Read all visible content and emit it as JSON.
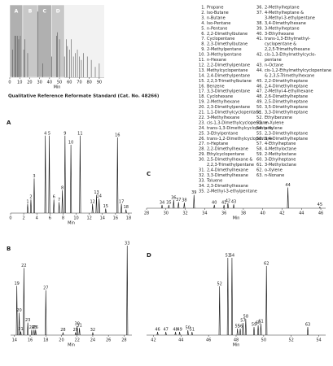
{
  "chart_data": [
    {
      "type": "overview",
      "caption": "Qualitative Reference Reformate Standard (Cat. No. 48266)",
      "xlabel": "Min",
      "xlim": [
        0,
        95
      ],
      "xticks": [
        0,
        10,
        20,
        30,
        40,
        50,
        60,
        70,
        80,
        90
      ],
      "ylim": [
        0,
        100
      ],
      "color": "#555555",
      "regions": [
        {
          "label": "A",
          "xlim": [
            0,
            13
          ]
        },
        {
          "label": "B",
          "xlim": [
            13,
            28
          ]
        },
        {
          "label": "C",
          "xlim": [
            28,
            42
          ]
        },
        {
          "label": "D",
          "xlim": [
            42,
            55
          ]
        }
      ],
      "x": [
        3,
        5,
        6,
        8,
        9,
        10.6,
        14,
        15,
        18,
        28,
        33,
        42,
        47,
        48,
        50,
        55,
        57,
        58,
        60,
        62,
        64,
        66,
        68,
        70,
        72,
        74,
        78,
        82,
        86,
        90
      ],
      "values": [
        40,
        60,
        60,
        60,
        55,
        60,
        40,
        55,
        35,
        95,
        20,
        30,
        60,
        65,
        55,
        30,
        55,
        45,
        40,
        55,
        30,
        35,
        40,
        30,
        25,
        35,
        30,
        25,
        15,
        20
      ]
    },
    {
      "type": "compound_list",
      "columns": [
        [
          {
            "no": "1.",
            "lines": [
              "Propane"
            ]
          },
          {
            "no": "2.",
            "lines": [
              "Iso-Butane"
            ]
          },
          {
            "no": "3.",
            "lines": [
              "n-Butane"
            ]
          },
          {
            "no": "4.",
            "lines": [
              "Iso-Pentane"
            ]
          },
          {
            "no": "5.",
            "lines": [
              "n-Pentane"
            ]
          },
          {
            "no": "6.",
            "lines": [
              "2,2-Dimethylbutane"
            ]
          },
          {
            "no": "7.",
            "lines": [
              "Cyclopentane"
            ]
          },
          {
            "no": "8.",
            "lines": [
              "2,3-Dimethylbutane"
            ]
          },
          {
            "no": "9.",
            "lines": [
              "2-Methylpentane"
            ]
          },
          {
            "no": "10.",
            "lines": [
              "3-Methylpentane"
            ]
          },
          {
            "no": "11.",
            "lines": [
              "n-Hexane"
            ]
          },
          {
            "no": "12.",
            "lines": [
              "2,2-Dimethylpentane"
            ]
          },
          {
            "no": "13.",
            "lines": [
              "Methylcyclopentane"
            ]
          },
          {
            "no": "14.",
            "lines": [
              "2,4-Dimethylpentane"
            ]
          },
          {
            "no": "15.",
            "lines": [
              "2,2,3-Trimethylbutane"
            ]
          },
          {
            "no": "16.",
            "lines": [
              "Benzene"
            ]
          },
          {
            "no": "17.",
            "lines": [
              "3,3-Dimethylpentane"
            ]
          },
          {
            "no": "18.",
            "lines": [
              "Cyclohexane"
            ]
          },
          {
            "no": "19.",
            "lines": [
              "2-Methylhexane"
            ]
          },
          {
            "no": "20.",
            "lines": [
              "2,3-Dimethylpentane"
            ]
          },
          {
            "no": "21.",
            "lines": [
              "1,1-Dimethylcyclopentane"
            ]
          },
          {
            "no": "22.",
            "lines": [
              "3-Methylhexane"
            ]
          },
          {
            "no": "23.",
            "lines": [
              "cis-1,3-Dimethylcyclopentane"
            ]
          },
          {
            "no": "24.",
            "lines": [
              "trans-1,3-Dimethylcyclopentane"
            ]
          },
          {
            "no": "25.",
            "lines": [
              "3-Ethylpentane"
            ]
          },
          {
            "no": "26.",
            "lines": [
              "trans-1,2-Dimethylcyclopentane"
            ]
          },
          {
            "no": "27.",
            "lines": [
              "n-Heptane"
            ]
          },
          {
            "no": "28.",
            "lines": [
              "2,2-Dimethylhexane"
            ]
          },
          {
            "no": "29.",
            "lines": [
              "Ethylcyclopentane"
            ]
          },
          {
            "no": "30.",
            "lines": [
              "2,5-Dimethylhexane &",
              "2,2,3-Trimethylpentane"
            ]
          },
          {
            "no": "31.",
            "lines": [
              "2,4-Dimethylhexane"
            ]
          },
          {
            "no": "32.",
            "lines": [
              "3,3-Dimethylhexane"
            ]
          },
          {
            "no": "33.",
            "lines": [
              "Toluene"
            ]
          },
          {
            "no": "34.",
            "lines": [
              "2,3-Dimethylhexane"
            ]
          },
          {
            "no": "35.",
            "lines": [
              "2-Methyl-3-ethylpentane"
            ]
          }
        ],
        [
          {
            "no": "36.",
            "lines": [
              "2-Methylheptane"
            ]
          },
          {
            "no": "37.",
            "lines": [
              "4-Methylheptane &",
              "3-Methyl-3-ethylpentane"
            ]
          },
          {
            "no": "38.",
            "lines": [
              "3,4-Dimethylhexane"
            ]
          },
          {
            "no": "39.",
            "lines": [
              "3-Methylheptane"
            ]
          },
          {
            "no": "40.",
            "lines": [
              "3-Ethylhexane"
            ]
          },
          {
            "no": "41.",
            "lines": [
              "trans-1,3-Ethylmethyl-",
              "cyclopentane &",
              "2,2,5-Trimethylhexane"
            ]
          },
          {
            "no": "42.",
            "lines": [
              "cis-1,3-Ethylmethylcyclo-",
              "pentane"
            ]
          },
          {
            "no": "43.",
            "lines": [
              "n-Octane"
            ]
          },
          {
            "no": "44.",
            "lines": [
              "cis-1,2-Ethylmethylcyclopentane",
              "& 2,3,5-Trimethylhexane"
            ]
          },
          {
            "no": "45.",
            "lines": [
              "2,2-Dimethylheptane"
            ]
          },
          {
            "no": "46.",
            "lines": [
              "2,4-Dimethylheptane"
            ]
          },
          {
            "no": "47.",
            "lines": [
              "2-Methyl-4-ethylhexane"
            ]
          },
          {
            "no": "48.",
            "lines": [
              "2,6-Dimethylheptane"
            ]
          },
          {
            "no": "49.",
            "lines": [
              "2,5-Dimethylheptane"
            ]
          },
          {
            "no": "50.",
            "lines": [
              "3,5-Dimethylheptane"
            ]
          },
          {
            "no": "51.",
            "lines": [
              "3,3-Dimethylheptane"
            ]
          },
          {
            "no": "52.",
            "lines": [
              "Ethylbenzene"
            ]
          },
          {
            "no": "53.",
            "lines": [
              "m-Xylene"
            ]
          },
          {
            "no": "54.",
            "lines": [
              "p-Xylene"
            ]
          },
          {
            "no": "55.",
            "lines": [
              "2,3-Dimethylheptane"
            ]
          },
          {
            "no": "56.",
            "lines": [
              "3,4-Dimethylheptane"
            ]
          },
          {
            "no": "57.",
            "lines": [
              "4-Ethylheptane"
            ]
          },
          {
            "no": "58.",
            "lines": [
              "4-Methyloctane"
            ]
          },
          {
            "no": "59.",
            "lines": [
              "2-Methyloctane"
            ]
          },
          {
            "no": "60.",
            "lines": [
              "3-Ethylheptane"
            ]
          },
          {
            "no": "61.",
            "lines": [
              "3-Methyloctane"
            ]
          },
          {
            "no": "62.",
            "lines": [
              "o-Xylene"
            ]
          },
          {
            "no": "63.",
            "lines": [
              "n-Nonane"
            ]
          }
        ]
      ]
    },
    {
      "type": "peaks",
      "title": "A",
      "xlabel": "Min",
      "xlim": [
        0,
        18.5
      ],
      "xticks": [
        0,
        2,
        4,
        6,
        8,
        10,
        12,
        14,
        16,
        18
      ],
      "ylim": [
        0,
        100
      ],
      "labels": [
        "1",
        "2",
        "3",
        "4",
        "5",
        "6",
        "7",
        "8",
        "9",
        "10",
        "11",
        "12",
        "13",
        "14",
        "15",
        "16",
        "17",
        "18"
      ],
      "x": [
        2.6,
        3.1,
        3.6,
        5.3,
        5.9,
        6.6,
        7.4,
        7.9,
        8.3,
        9.2,
        10.6,
        12.5,
        13.1,
        13.5,
        14.5,
        16.3,
        16.9,
        17.6
      ],
      "values": [
        10,
        15,
        38,
        85,
        85,
        15,
        12,
        25,
        85,
        75,
        85,
        10,
        20,
        16,
        5,
        83,
        10,
        4
      ]
    },
    {
      "type": "peaks",
      "title": "C",
      "xlabel": "Min",
      "xlim": [
        28,
        46.5
      ],
      "xticks": [
        28,
        30,
        32,
        34,
        36,
        38,
        40,
        42,
        44,
        46
      ],
      "ylim": [
        0,
        100
      ],
      "labels": [
        "34",
        "35",
        "36",
        "37",
        "38",
        "39",
        "40",
        "41",
        "42",
        "43",
        "44",
        "45"
      ],
      "x": [
        29.6,
        30.3,
        30.8,
        31.3,
        31.9,
        32.9,
        35.0,
        36.0,
        36.4,
        37.0,
        42.6,
        45.9
      ],
      "values": [
        12,
        12,
        30,
        22,
        20,
        48,
        12,
        12,
        18,
        14,
        75,
        4
      ]
    },
    {
      "type": "peaks",
      "title": "B",
      "xlabel": "Min",
      "xlim": [
        13.5,
        29
      ],
      "xticks": [
        14,
        16,
        18,
        20,
        22,
        24,
        26,
        28
      ],
      "ylim": [
        0,
        100
      ],
      "labels": [
        "19",
        "20",
        "21",
        "22",
        "23",
        "24",
        "25",
        "26",
        "27",
        "28",
        "29",
        "30",
        "31",
        "32",
        "33"
      ],
      "x": [
        14.3,
        14.6,
        14.8,
        15.2,
        15.7,
        16.2,
        16.5,
        16.7,
        18.0,
        20.2,
        21.8,
        22.0,
        22.3,
        24.0,
        28.4
      ],
      "values": [
        55,
        25,
        4,
        75,
        14,
        6,
        6,
        6,
        50,
        3,
        3,
        10,
        8,
        3,
        100
      ]
    },
    {
      "type": "peaks",
      "title": "D",
      "xlabel": "Min",
      "xlim": [
        41.5,
        54.5
      ],
      "xticks": [
        42,
        44,
        46,
        48,
        50,
        52,
        54
      ],
      "ylim": [
        0,
        100
      ],
      "labels": [
        "46",
        "47",
        "48",
        "49",
        "50",
        "51",
        "52",
        "53",
        "54",
        "55",
        "56",
        "57",
        "58",
        "59",
        "60",
        "61",
        "62",
        "63"
      ],
      "x": [
        42.3,
        42.9,
        43.6,
        43.9,
        44.5,
        44.8,
        46.8,
        47.4,
        47.7,
        48.1,
        48.3,
        48.5,
        48.7,
        49.3,
        49.6,
        49.8,
        50.2,
        53.2
      ],
      "values": [
        4,
        4,
        4,
        4,
        6,
        4,
        60,
        95,
        95,
        8,
        8,
        15,
        20,
        10,
        12,
        14,
        85,
        10
      ]
    }
  ]
}
